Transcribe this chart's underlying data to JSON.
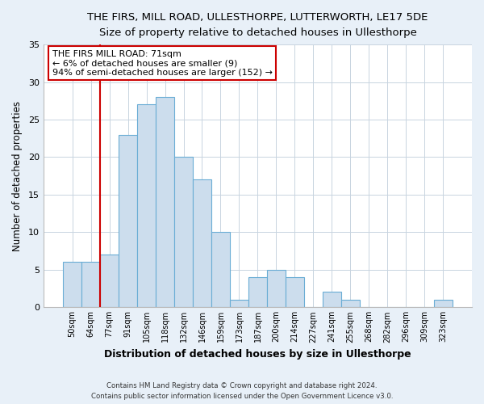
{
  "title": "THE FIRS, MILL ROAD, ULLESTHORPE, LUTTERWORTH, LE17 5DE",
  "subtitle": "Size of property relative to detached houses in Ullesthorpe",
  "xlabel": "Distribution of detached houses by size in Ullesthorpe",
  "ylabel": "Number of detached properties",
  "bar_labels": [
    "50sqm",
    "64sqm",
    "77sqm",
    "91sqm",
    "105sqm",
    "118sqm",
    "132sqm",
    "146sqm",
    "159sqm",
    "173sqm",
    "187sqm",
    "200sqm",
    "214sqm",
    "227sqm",
    "241sqm",
    "255sqm",
    "268sqm",
    "282sqm",
    "296sqm",
    "309sqm",
    "323sqm"
  ],
  "bar_values": [
    6,
    6,
    7,
    23,
    27,
    28,
    20,
    17,
    10,
    1,
    4,
    5,
    4,
    0,
    2,
    1,
    0,
    0,
    0,
    0,
    1
  ],
  "bar_color": "#ccdded",
  "bar_edge_color": "#6aadd5",
  "vline_color": "#cc0000",
  "vline_x": 1.5,
  "annotation_line1": "THE FIRS MILL ROAD: 71sqm",
  "annotation_line2": "← 6% of detached houses are smaller (9)",
  "annotation_line3": "94% of semi-detached houses are larger (152) →",
  "annotation_box_color": "#ffffff",
  "annotation_box_edge": "#cc0000",
  "ylim": [
    0,
    35
  ],
  "yticks": [
    0,
    5,
    10,
    15,
    20,
    25,
    30,
    35
  ],
  "footer_line1": "Contains HM Land Registry data © Crown copyright and database right 2024.",
  "footer_line2": "Contains public sector information licensed under the Open Government Licence v3.0.",
  "bg_color": "#e8f0f8",
  "plot_bg_color": "#ffffff",
  "grid_color": "#c8d4e0"
}
